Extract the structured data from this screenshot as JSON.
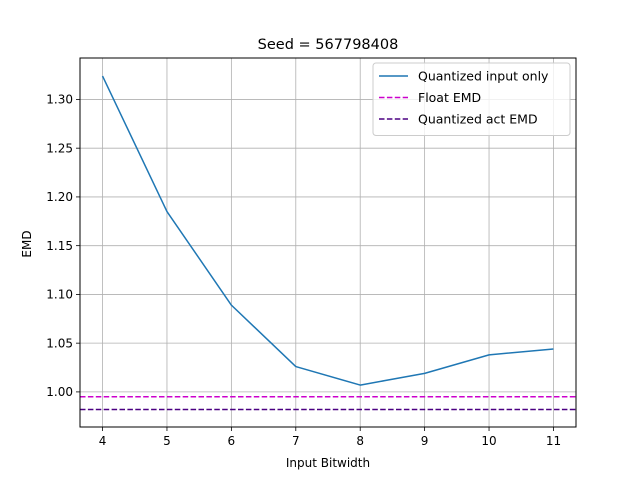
{
  "chart_data": {
    "type": "line",
    "title": "Seed = 567798408",
    "xlabel": "Input Bitwidth",
    "ylabel": "EMD",
    "x": [
      4,
      5,
      6,
      7,
      8,
      9,
      10,
      11
    ],
    "xlim": [
      3.65,
      11.35
    ],
    "ylim": [
      0.964,
      1.3425
    ],
    "xticks": [
      4,
      5,
      6,
      7,
      8,
      9,
      10,
      11
    ],
    "yticks": [
      1.0,
      1.05,
      1.1,
      1.15,
      1.2,
      1.25,
      1.3
    ],
    "ytick_labels": [
      "1.00",
      "1.05",
      "1.10",
      "1.15",
      "1.20",
      "1.25",
      "1.30"
    ],
    "grid": true,
    "legend_position": "top-right",
    "series": [
      {
        "name": "Quantized input only",
        "style": "solid",
        "color": "#1f77b4",
        "values": [
          1.324,
          1.185,
          1.089,
          1.026,
          1.007,
          1.019,
          1.038,
          1.044
        ]
      }
    ],
    "hlines": [
      {
        "name": "Float EMD",
        "style": "dashed",
        "color": "#cc00cc",
        "value": 0.995
      },
      {
        "name": "Quantized act EMD",
        "style": "dashed",
        "color": "#4b0082",
        "value": 0.982
      }
    ]
  }
}
